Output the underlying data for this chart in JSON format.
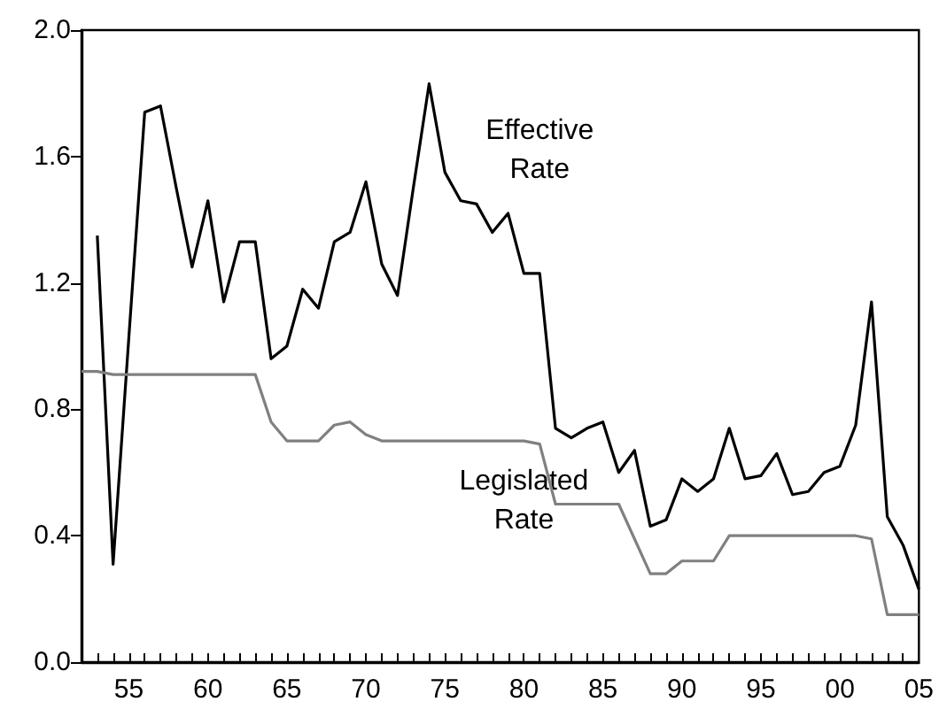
{
  "chart_data": {
    "type": "line",
    "x": [
      1952,
      1953,
      1954,
      1955,
      1956,
      1957,
      1958,
      1959,
      1960,
      1961,
      1962,
      1963,
      1964,
      1965,
      1966,
      1967,
      1968,
      1969,
      1970,
      1971,
      1972,
      1973,
      1974,
      1975,
      1976,
      1977,
      1978,
      1979,
      1980,
      1981,
      1982,
      1983,
      1984,
      1985,
      1986,
      1987,
      1988,
      1989,
      1990,
      1991,
      1992,
      1993,
      1994,
      1995,
      1996,
      1997,
      1998,
      1999,
      2000,
      2001,
      2002,
      2003,
      2004,
      2005
    ],
    "series": [
      {
        "name": "Effective\nRate",
        "color": "#000000",
        "values": [
          null,
          1.35,
          0.31,
          1.03,
          1.74,
          1.76,
          1.5,
          1.25,
          1.46,
          1.14,
          1.33,
          1.33,
          0.96,
          1.0,
          1.18,
          1.12,
          1.33,
          1.36,
          1.52,
          1.26,
          1.16,
          1.5,
          1.83,
          1.55,
          1.46,
          1.45,
          1.36,
          1.42,
          1.23,
          1.23,
          0.74,
          0.71,
          0.74,
          0.76,
          0.6,
          0.67,
          0.43,
          0.45,
          0.58,
          0.54,
          0.58,
          0.74,
          0.58,
          0.59,
          0.66,
          0.53,
          0.54,
          0.6,
          0.62,
          0.75,
          1.14,
          0.46,
          0.37,
          0.23
        ]
      },
      {
        "name": "Legislated\nRate",
        "color": "#808080",
        "values": [
          0.92,
          0.92,
          0.91,
          0.91,
          0.91,
          0.91,
          0.91,
          0.91,
          0.91,
          0.91,
          0.91,
          0.91,
          0.76,
          0.7,
          0.7,
          0.7,
          0.75,
          0.76,
          0.72,
          0.7,
          0.7,
          0.7,
          0.7,
          0.7,
          0.7,
          0.7,
          0.7,
          0.7,
          0.7,
          0.69,
          0.5,
          0.5,
          0.5,
          0.5,
          0.5,
          0.39,
          0.28,
          0.28,
          0.32,
          0.32,
          0.32,
          0.4,
          0.4,
          0.4,
          0.4,
          0.4,
          0.4,
          0.4,
          0.4,
          0.4,
          0.39,
          0.15,
          0.15,
          0.15
        ]
      }
    ],
    "xlim": [
      1952,
      2005
    ],
    "xticks": [
      {
        "value": 1952,
        "label": null
      },
      {
        "value": 1953,
        "label": null
      },
      {
        "value": 1954,
        "label": null
      },
      {
        "value": 1955,
        "label": "55"
      },
      {
        "value": 1956,
        "label": null
      },
      {
        "value": 1957,
        "label": null
      },
      {
        "value": 1958,
        "label": null
      },
      {
        "value": 1959,
        "label": null
      },
      {
        "value": 1960,
        "label": "60"
      },
      {
        "value": 1961,
        "label": null
      },
      {
        "value": 1962,
        "label": null
      },
      {
        "value": 1963,
        "label": null
      },
      {
        "value": 1964,
        "label": null
      },
      {
        "value": 1965,
        "label": "65"
      },
      {
        "value": 1966,
        "label": null
      },
      {
        "value": 1967,
        "label": null
      },
      {
        "value": 1968,
        "label": null
      },
      {
        "value": 1969,
        "label": null
      },
      {
        "value": 1970,
        "label": "70"
      },
      {
        "value": 1971,
        "label": null
      },
      {
        "value": 1972,
        "label": null
      },
      {
        "value": 1973,
        "label": null
      },
      {
        "value": 1974,
        "label": null
      },
      {
        "value": 1975,
        "label": "75"
      },
      {
        "value": 1976,
        "label": null
      },
      {
        "value": 1977,
        "label": null
      },
      {
        "value": 1978,
        "label": null
      },
      {
        "value": 1979,
        "label": null
      },
      {
        "value": 1980,
        "label": "80"
      },
      {
        "value": 1981,
        "label": null
      },
      {
        "value": 1982,
        "label": null
      },
      {
        "value": 1983,
        "label": null
      },
      {
        "value": 1984,
        "label": null
      },
      {
        "value": 1985,
        "label": "85"
      },
      {
        "value": 1986,
        "label": null
      },
      {
        "value": 1987,
        "label": null
      },
      {
        "value": 1988,
        "label": null
      },
      {
        "value": 1989,
        "label": null
      },
      {
        "value": 1990,
        "label": "90"
      },
      {
        "value": 1991,
        "label": null
      },
      {
        "value": 1992,
        "label": null
      },
      {
        "value": 1993,
        "label": null
      },
      {
        "value": 1994,
        "label": null
      },
      {
        "value": 1995,
        "label": "95"
      },
      {
        "value": 1996,
        "label": null
      },
      {
        "value": 1997,
        "label": null
      },
      {
        "value": 1998,
        "label": null
      },
      {
        "value": 1999,
        "label": null
      },
      {
        "value": 2000,
        "label": "00"
      },
      {
        "value": 2001,
        "label": null
      },
      {
        "value": 2002,
        "label": null
      },
      {
        "value": 2003,
        "label": null
      },
      {
        "value": 2004,
        "label": null
      },
      {
        "value": 2005,
        "label": "05"
      }
    ],
    "ylim": [
      0,
      2
    ],
    "yticks": [
      {
        "value": 0,
        "label": "0.0"
      },
      {
        "value": 0.4,
        "label": "0.4"
      },
      {
        "value": 0.8,
        "label": "0.8"
      },
      {
        "value": 1.2,
        "label": "1.2"
      },
      {
        "value": 1.6,
        "label": "1.6"
      },
      {
        "value": 2,
        "label": "2.0"
      }
    ],
    "grid": false,
    "marker": "none",
    "line_style": "solid"
  }
}
